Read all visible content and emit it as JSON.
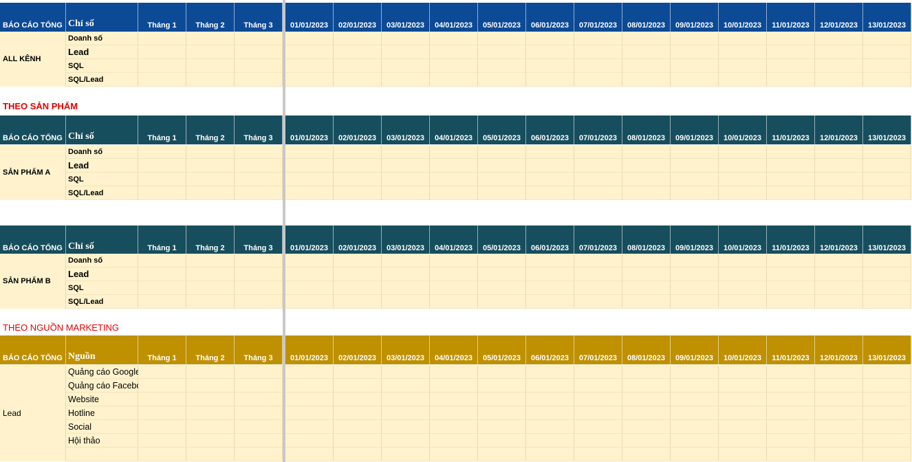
{
  "header_labels": {
    "report": "BÁO CÁO TỔNG",
    "metric": "Chỉ số",
    "source": "Nguồn",
    "months": [
      "Tháng 1",
      "Tháng 2",
      "Tháng 3"
    ],
    "dates": [
      "01/01/2023",
      "02/01/2023",
      "03/01/2023",
      "04/01/2023",
      "05/01/2023",
      "06/01/2023",
      "07/01/2023",
      "08/01/2023",
      "09/01/2023",
      "10/01/2023",
      "11/01/2023",
      "12/01/2023",
      "13/01/2023"
    ]
  },
  "colors": {
    "blue": "#0c4a96",
    "teal": "#174e5d",
    "gold": "#bf9000",
    "cell": "#fff2cc",
    "section_title": "#e00000"
  },
  "metrics": [
    "Doanh số",
    "Lead",
    "SQL",
    "SQL/Lead"
  ],
  "sections": {
    "product_title": "THEO SẢN PHẨM",
    "marketing_title": "THEO NGUỒN MARKETING"
  },
  "blocks": {
    "all": {
      "label": "ALL KÊNH"
    },
    "product_a": {
      "label": "SẢN PHẨM A"
    },
    "product_b": {
      "label": "SẢN PHẨM B"
    },
    "lead": {
      "label": "Lead",
      "sources": [
        "Quảng cáo Google",
        "Quảng cáo Facebook",
        "Website",
        "Hotline",
        "Social",
        "Hội thảo",
        ""
      ]
    }
  }
}
